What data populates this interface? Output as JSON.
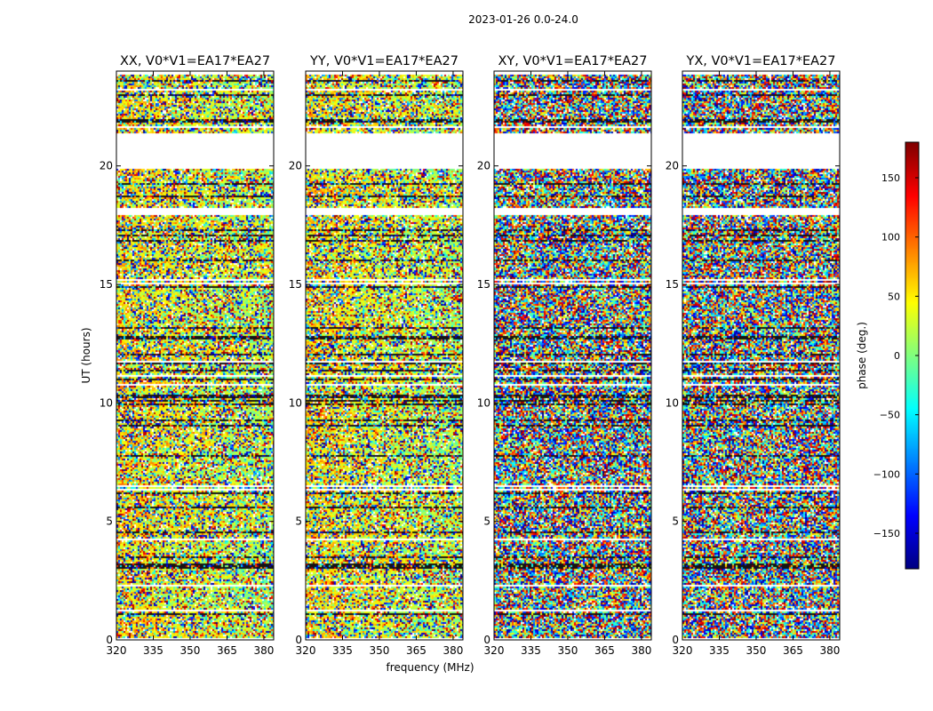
{
  "chart_data": {
    "type": "heatmap",
    "title": "2023-01-26 0.0-24.0",
    "xlabel": "frequency (MHz)",
    "ylabel": "UT (hours)",
    "xlim": [
      320,
      384
    ],
    "ylim": [
      0,
      24
    ],
    "x_ticks": [
      "320",
      "335",
      "350",
      "365",
      "380"
    ],
    "x_tick_values": [
      320,
      335,
      350,
      365,
      380
    ],
    "y_ticks": [
      "0",
      "5",
      "10",
      "15",
      "20"
    ],
    "y_tick_values": [
      0,
      5,
      10,
      15,
      20
    ],
    "panels": [
      {
        "title": "XX, V0*V1=EA17*EA27",
        "polarization": "XX",
        "coherent": true
      },
      {
        "title": "YY, V0*V1=EA17*EA27",
        "polarization": "YY",
        "coherent": true
      },
      {
        "title": "XY, V0*V1=EA17*EA27",
        "polarization": "XY",
        "coherent": false
      },
      {
        "title": "YX, V0*V1=EA17*EA27",
        "polarization": "YX",
        "coherent": false
      }
    ],
    "gaps_hours": [
      [
        17.9,
        18.2
      ],
      [
        19.9,
        21.4
      ]
    ],
    "colorbar": {
      "label": "phase (deg.)",
      "range": [
        -180,
        180
      ],
      "ticks": [
        "150",
        "100",
        "50",
        "0",
        "−50",
        "−100",
        "−150"
      ],
      "tick_values": [
        150,
        100,
        50,
        0,
        -50,
        -100,
        -150
      ],
      "colormap": "jet",
      "colors": [
        "#00007f",
        "#0000ff",
        "#007fff",
        "#00ffff",
        "#7fff7f",
        "#ffff00",
        "#ff7f00",
        "#ff0000",
        "#7f0000"
      ]
    }
  }
}
